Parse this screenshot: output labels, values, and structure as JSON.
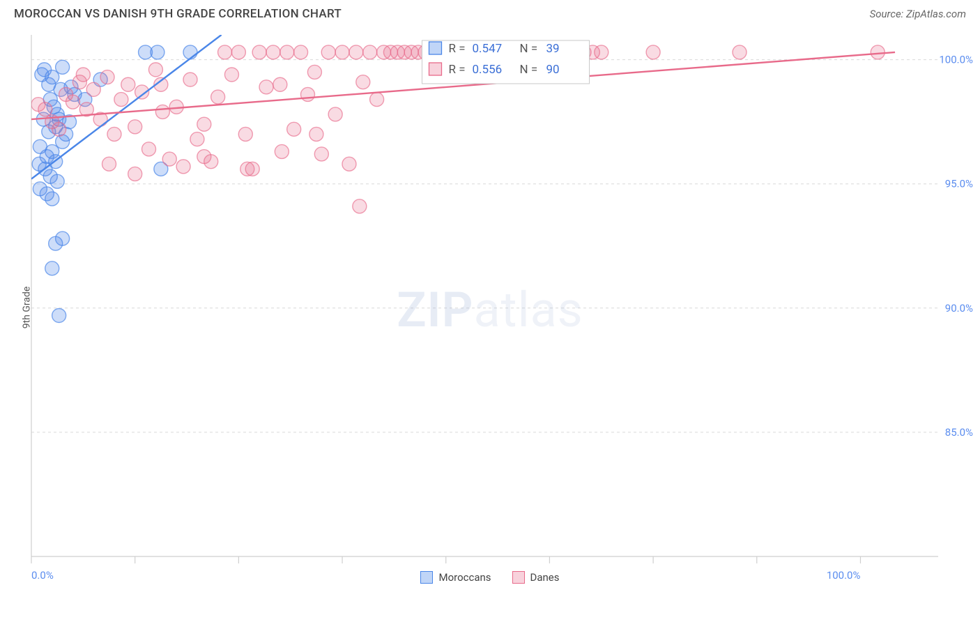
{
  "header": {
    "title": "MOROCCAN VS DANISH 9TH GRADE CORRELATION CHART",
    "source": "Source: ZipAtlas.com"
  },
  "chart": {
    "type": "scatter",
    "background_color": "#ffffff",
    "grid_color": "#d9d9d9",
    "border_color": "#cfcfcf",
    "ylabel": "9th Grade",
    "xlim": [
      0,
      105
    ],
    "ylim": [
      80,
      101
    ],
    "xtick_positions": [
      0,
      12,
      24,
      36,
      48,
      60,
      72,
      84,
      96
    ],
    "xtick_labels": [
      "0.0%",
      "",
      "",
      "",
      "",
      "",
      "",
      "",
      "100.0%"
    ],
    "ytick_positions": [
      85,
      90,
      95,
      100
    ],
    "ytick_labels": [
      "85.0%",
      "90.0%",
      "95.0%",
      "100.0%"
    ],
    "tick_label_color": "#5b8def",
    "marker_radius": 10,
    "marker_opacity": 0.35,
    "series": [
      {
        "name": "Moroccans",
        "color": "#4a86e8",
        "fill": "rgba(74,134,232,0.28)",
        "stroke": "rgba(74,134,232,0.7)",
        "trend": {
          "x1": 0,
          "y1": 95.2,
          "x2": 22,
          "y2": 101.0
        },
        "points": [
          [
            1.2,
            99.4
          ],
          [
            1.5,
            99.6
          ],
          [
            2.0,
            99.0
          ],
          [
            2.4,
            99.3
          ],
          [
            3.6,
            99.7
          ],
          [
            3.4,
            98.8
          ],
          [
            2.2,
            98.4
          ],
          [
            2.6,
            98.1
          ],
          [
            3.0,
            97.8
          ],
          [
            1.4,
            97.6
          ],
          [
            2.0,
            97.1
          ],
          [
            2.8,
            97.3
          ],
          [
            3.2,
            97.6
          ],
          [
            4.0,
            97.0
          ],
          [
            4.4,
            97.5
          ],
          [
            1.0,
            96.5
          ],
          [
            1.8,
            96.1
          ],
          [
            2.4,
            96.3
          ],
          [
            2.8,
            95.9
          ],
          [
            3.6,
            96.7
          ],
          [
            1.6,
            95.6
          ],
          [
            2.2,
            95.3
          ],
          [
            0.9,
            95.8
          ],
          [
            3.0,
            95.1
          ],
          [
            1.0,
            94.8
          ],
          [
            1.8,
            94.6
          ],
          [
            2.4,
            94.4
          ],
          [
            4.6,
            98.9
          ],
          [
            5.0,
            98.6
          ],
          [
            8.0,
            99.2
          ],
          [
            6.2,
            98.4
          ],
          [
            14.6,
            100.3
          ],
          [
            13.2,
            100.3
          ],
          [
            18.4,
            100.3
          ],
          [
            15.0,
            95.6
          ],
          [
            2.8,
            92.6
          ],
          [
            3.6,
            92.8
          ],
          [
            2.4,
            91.6
          ],
          [
            3.2,
            89.7
          ]
        ]
      },
      {
        "name": "Danes",
        "color": "#e86a8a",
        "fill": "rgba(232,106,138,0.24)",
        "stroke": "rgba(232,106,138,0.65)",
        "trend": {
          "x1": 0,
          "y1": 97.6,
          "x2": 100,
          "y2": 100.3
        },
        "points": [
          [
            0.8,
            98.2
          ],
          [
            1.6,
            98.0
          ],
          [
            2.4,
            97.5
          ],
          [
            3.2,
            97.2
          ],
          [
            4.0,
            98.6
          ],
          [
            4.8,
            98.3
          ],
          [
            5.6,
            99.1
          ],
          [
            6.4,
            98.0
          ],
          [
            7.2,
            98.8
          ],
          [
            8.0,
            97.6
          ],
          [
            8.8,
            99.3
          ],
          [
            9.6,
            97.0
          ],
          [
            10.4,
            98.4
          ],
          [
            11.2,
            99.0
          ],
          [
            12.0,
            97.3
          ],
          [
            12.8,
            98.7
          ],
          [
            13.6,
            96.4
          ],
          [
            14.4,
            99.6
          ],
          [
            15.2,
            97.9
          ],
          [
            16.0,
            96.0
          ],
          [
            16.8,
            98.1
          ],
          [
            17.6,
            95.7
          ],
          [
            18.4,
            99.2
          ],
          [
            19.2,
            96.8
          ],
          [
            20.0,
            97.4
          ],
          [
            20.8,
            95.9
          ],
          [
            21.6,
            98.5
          ],
          [
            22.4,
            100.3
          ],
          [
            23.2,
            99.4
          ],
          [
            24.0,
            100.3
          ],
          [
            24.8,
            97.0
          ],
          [
            25.6,
            95.6
          ],
          [
            26.4,
            100.3
          ],
          [
            27.2,
            98.9
          ],
          [
            28.0,
            100.3
          ],
          [
            28.8,
            99.0
          ],
          [
            29.6,
            100.3
          ],
          [
            30.4,
            97.2
          ],
          [
            31.2,
            100.3
          ],
          [
            32.0,
            98.6
          ],
          [
            32.8,
            99.5
          ],
          [
            33.6,
            96.2
          ],
          [
            34.4,
            100.3
          ],
          [
            35.2,
            97.8
          ],
          [
            36.0,
            100.3
          ],
          [
            36.8,
            95.8
          ],
          [
            37.6,
            100.3
          ],
          [
            38.4,
            99.1
          ],
          [
            39.2,
            100.3
          ],
          [
            40.0,
            98.4
          ],
          [
            40.8,
            100.3
          ],
          [
            41.6,
            100.3
          ],
          [
            42.4,
            100.3
          ],
          [
            43.2,
            100.3
          ],
          [
            44.0,
            100.3
          ],
          [
            44.8,
            100.3
          ],
          [
            45.6,
            100.3
          ],
          [
            46.4,
            100.3
          ],
          [
            47.2,
            100.3
          ],
          [
            48.0,
            100.3
          ],
          [
            48.8,
            100.3
          ],
          [
            49.6,
            100.3
          ],
          [
            50.4,
            100.3
          ],
          [
            51.2,
            100.3
          ],
          [
            52.0,
            100.3
          ],
          [
            52.8,
            100.3
          ],
          [
            53.6,
            100.3
          ],
          [
            54.4,
            100.3
          ],
          [
            55.2,
            100.3
          ],
          [
            56.0,
            100.3
          ],
          [
            56.8,
            100.3
          ],
          [
            57.6,
            100.3
          ],
          [
            58.4,
            100.3
          ],
          [
            60.0,
            100.3
          ],
          [
            62.0,
            100.3
          ],
          [
            64.0,
            100.3
          ],
          [
            65.0,
            100.3
          ],
          [
            66.0,
            100.3
          ],
          [
            72.0,
            100.3
          ],
          [
            82.0,
            100.3
          ],
          [
            98.0,
            100.3
          ],
          [
            38.0,
            94.1
          ],
          [
            33.0,
            97.0
          ],
          [
            29.0,
            96.3
          ],
          [
            25.0,
            95.6
          ],
          [
            20.0,
            96.1
          ],
          [
            15.0,
            99.0
          ],
          [
            12.0,
            95.4
          ],
          [
            9.0,
            95.8
          ],
          [
            6.0,
            99.4
          ]
        ]
      }
    ],
    "stats_box": {
      "bg": "#ffffff",
      "border": "#c9c9c9",
      "rows": [
        {
          "swatch_fill": "rgba(74,134,232,0.35)",
          "swatch_stroke": "#4a86e8",
          "r_label": "R =",
          "r_val": "0.547",
          "n_label": "N =",
          "n_val": "39"
        },
        {
          "swatch_fill": "rgba(232,106,138,0.30)",
          "swatch_stroke": "#e86a8a",
          "r_label": "R =",
          "r_val": "0.556",
          "n_label": "N =",
          "n_val": "90"
        }
      ],
      "label_color": "#555",
      "value_color": "#3b6fd6"
    },
    "legend": [
      {
        "label": "Moroccans",
        "fill": "rgba(74,134,232,0.35)",
        "stroke": "#4a86e8"
      },
      {
        "label": "Danes",
        "fill": "rgba(232,106,138,0.30)",
        "stroke": "#e86a8a"
      }
    ],
    "watermark": {
      "zip": "ZIP",
      "atlas": "atlas"
    }
  }
}
